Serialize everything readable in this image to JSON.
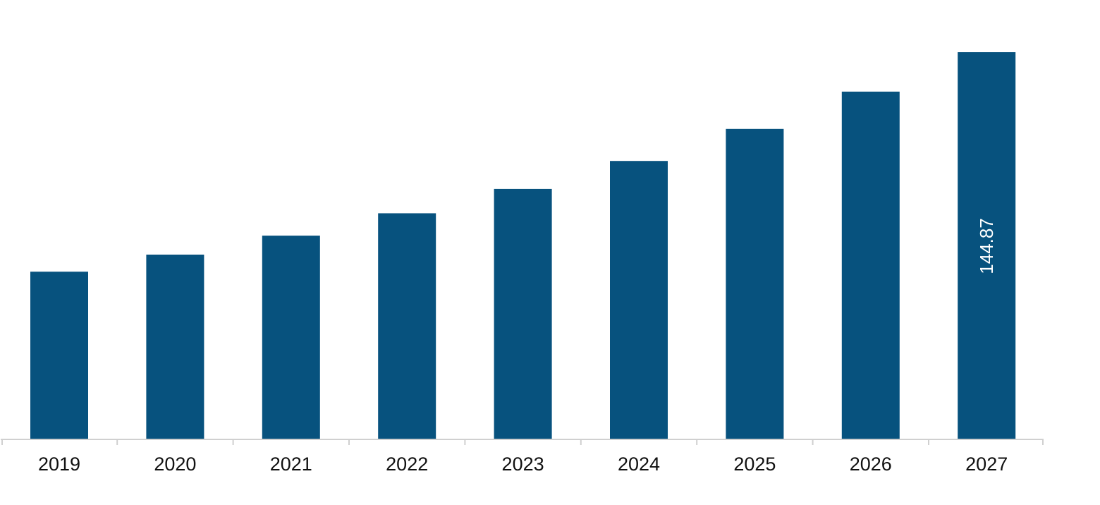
{
  "chart_data": {
    "type": "bar",
    "title": "",
    "xlabel": "",
    "ylabel": "",
    "categories": [
      "2019",
      "2020",
      "2021",
      "2022",
      "2023",
      "2024",
      "2025",
      "2026",
      "2027"
    ],
    "values": [
      62.6,
      69.0,
      76.1,
      84.5,
      93.6,
      104.1,
      116.1,
      130.1,
      144.87
    ],
    "data_labels": [
      {
        "category": "2027",
        "text": "144.87"
      }
    ],
    "ylim": [
      0,
      150
    ],
    "grid": false,
    "legend": "none",
    "colors": {
      "bar": "#07527E",
      "axis": "#d0d0d0",
      "tick_text": "#111111",
      "data_label_text": "#ffffff"
    }
  }
}
